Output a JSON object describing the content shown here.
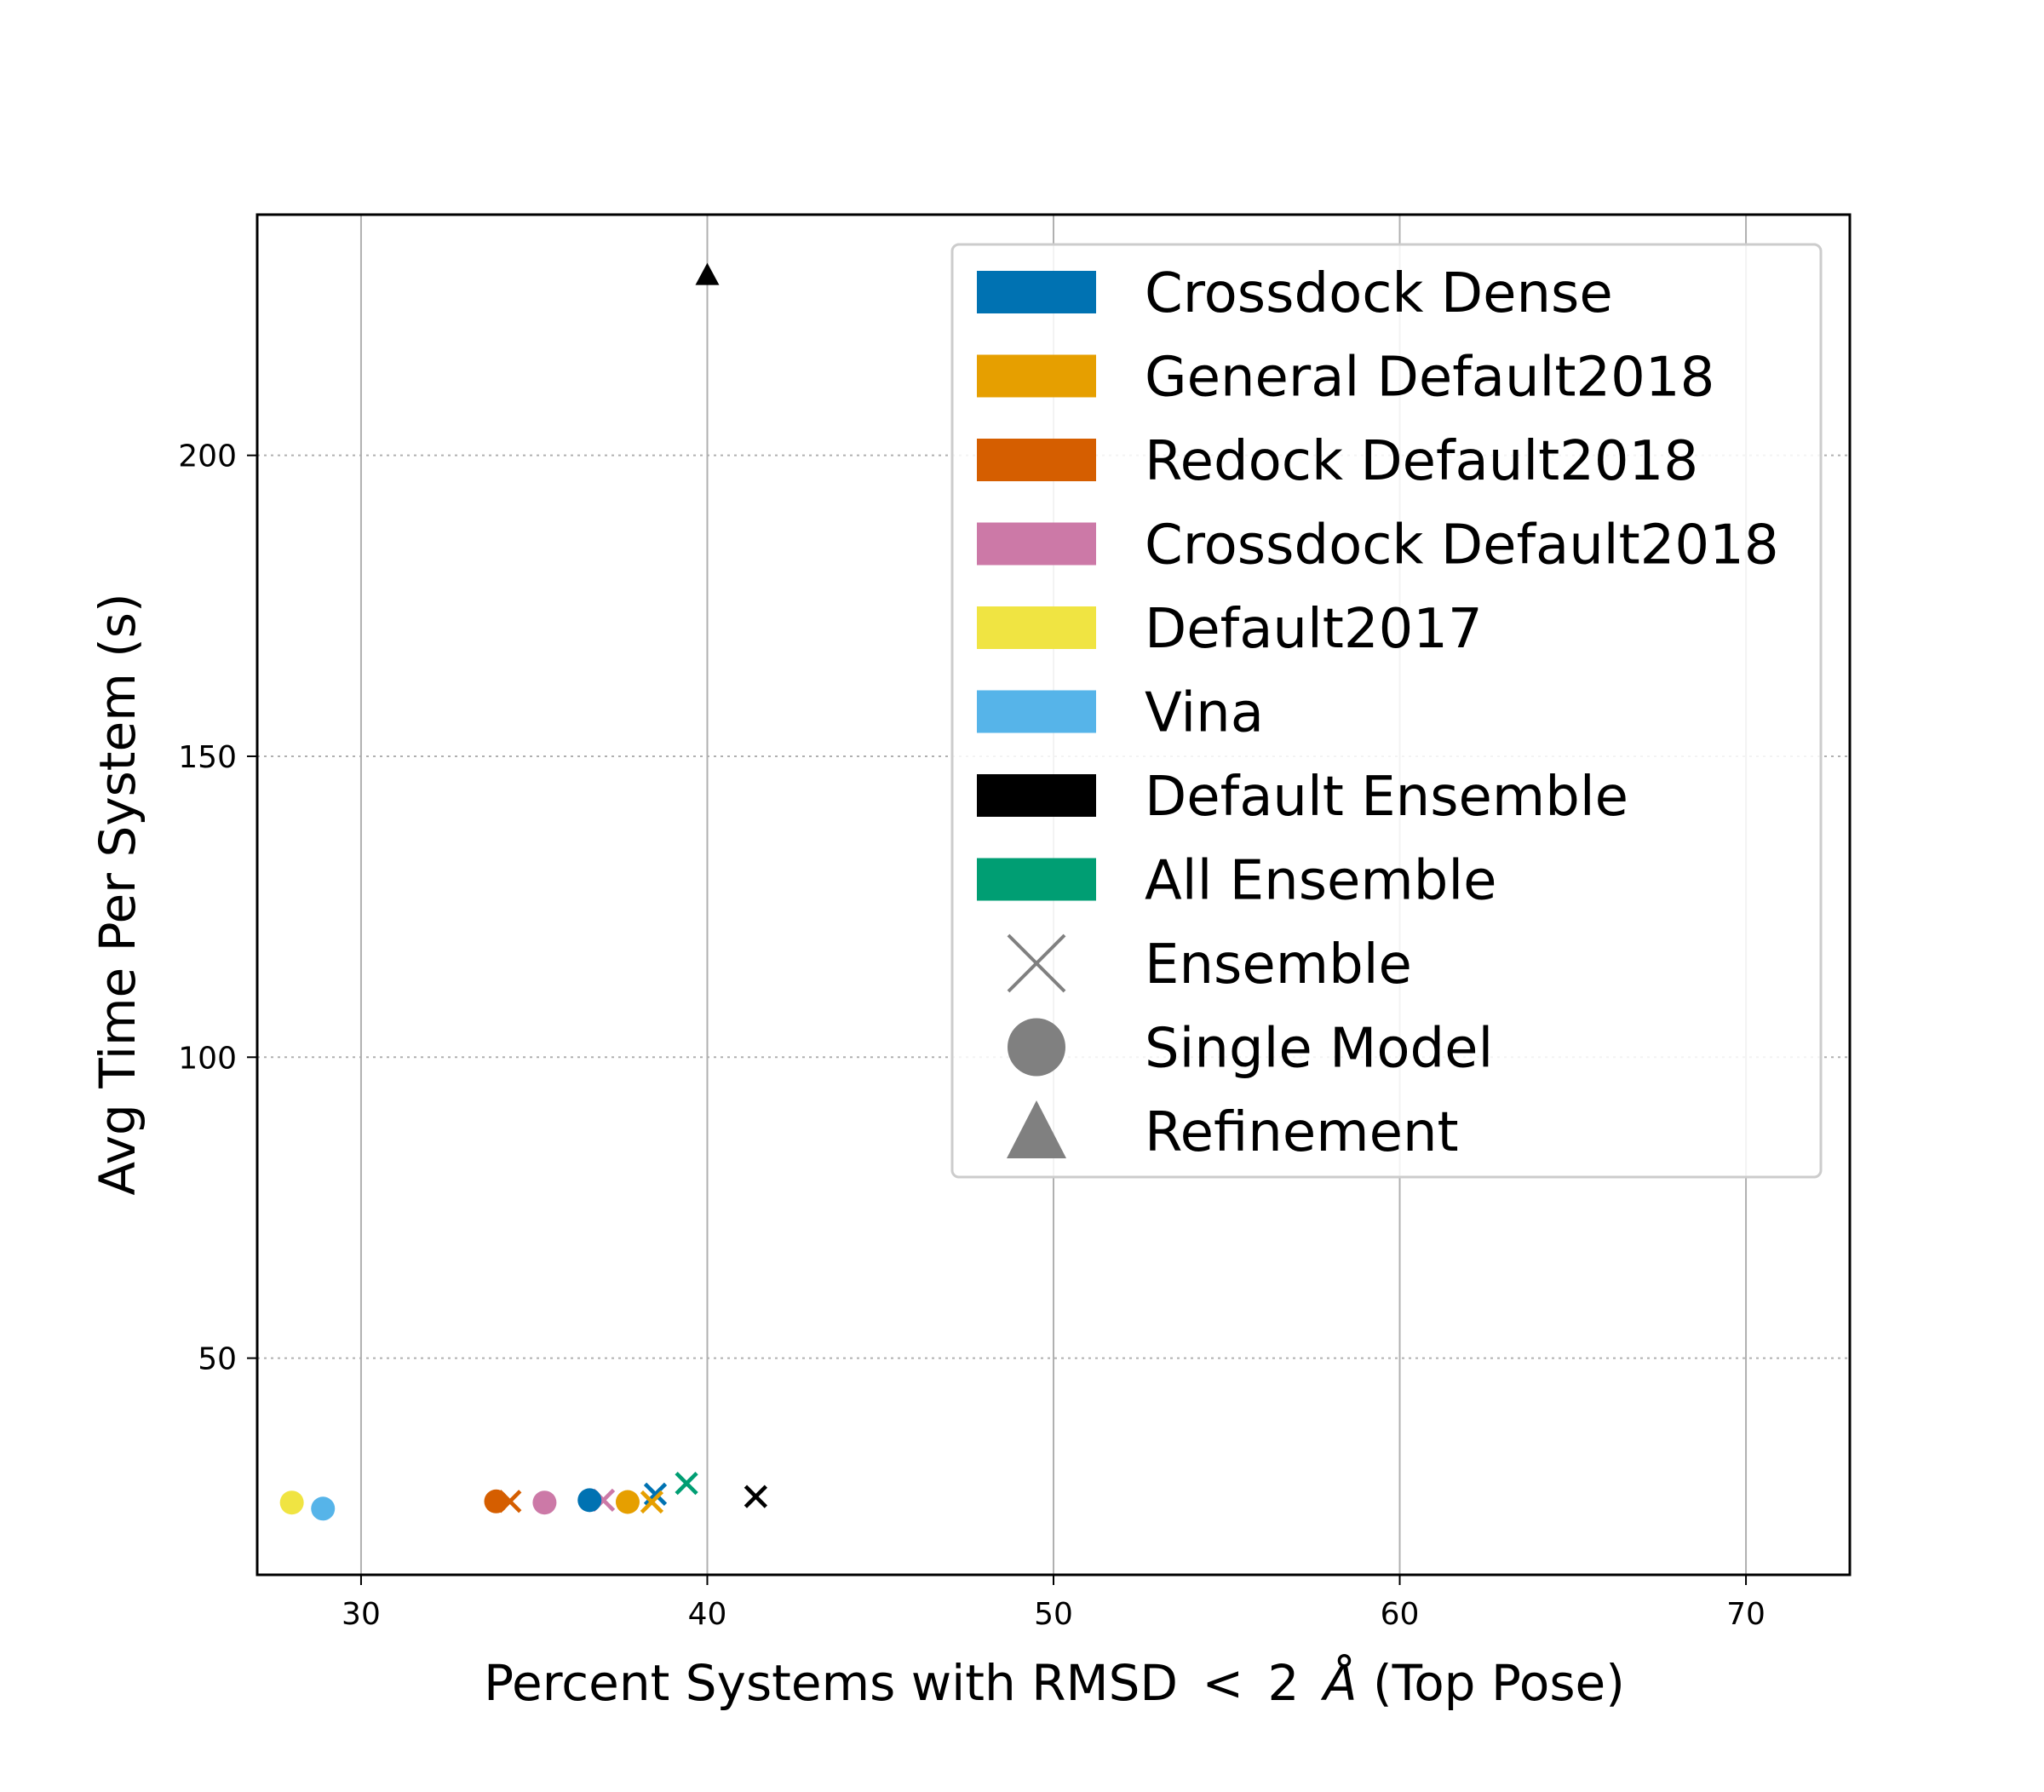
{
  "chart_data": {
    "type": "scatter",
    "title": "",
    "xlabel": "Percent Systems with RMSD < 2 Å (Top Pose)",
    "xlabel_parts": [
      "Percent Systems with RMSD",
      "<",
      "2",
      "Å",
      "(Top Pose)"
    ],
    "ylabel": "Avg Time Per System (s)",
    "xlim": [
      27,
      73
    ],
    "ylim": [
      14,
      240
    ],
    "xticks": [
      30,
      40,
      50,
      60,
      70
    ],
    "yticks": [
      50,
      100,
      150,
      200
    ],
    "grid": {
      "x": "solid",
      "y": "dotted"
    },
    "legend_position": "upper-right",
    "legend": {
      "colors": [
        {
          "label": "Crossdock Dense",
          "color": "#0072b2"
        },
        {
          "label": "General Default2018",
          "color": "#e69f00"
        },
        {
          "label": "Redock Default2018",
          "color": "#d55e00"
        },
        {
          "label": "Crossdock Default2018",
          "color": "#cc79a7"
        },
        {
          "label": "Default2017",
          "color": "#f0e442"
        },
        {
          "label": "Vina",
          "color": "#56b4e9"
        },
        {
          "label": "Default Ensemble",
          "color": "#000000"
        },
        {
          "label": "All Ensemble",
          "color": "#009e73"
        }
      ],
      "markers": [
        {
          "label": "Ensemble",
          "marker": "x",
          "color": "#808080"
        },
        {
          "label": "Single Model",
          "marker": "circle",
          "color": "#808080"
        },
        {
          "label": "Refinement",
          "marker": "triangle",
          "color": "#808080"
        }
      ]
    },
    "points": [
      {
        "series": "Default2017",
        "marker": "circle",
        "x": 28.0,
        "y": 26.0,
        "color": "#f0e442"
      },
      {
        "series": "Vina",
        "marker": "circle",
        "x": 28.9,
        "y": 25.0,
        "color": "#56b4e9"
      },
      {
        "series": "Redock Default2018",
        "marker": "circle",
        "x": 33.9,
        "y": 26.2,
        "color": "#d55e00"
      },
      {
        "series": "Redock Default2018",
        "marker": "x",
        "x": 34.3,
        "y": 26.2,
        "color": "#d55e00"
      },
      {
        "series": "Crossdock Default2018",
        "marker": "circle",
        "x": 35.3,
        "y": 26.0,
        "color": "#cc79a7"
      },
      {
        "series": "Crossdock Default2018",
        "marker": "x",
        "x": 37.0,
        "y": 26.4,
        "color": "#cc79a7"
      },
      {
        "series": "Crossdock Dense",
        "marker": "circle",
        "x": 36.6,
        "y": 26.4,
        "color": "#0072b2"
      },
      {
        "series": "General Default2018",
        "marker": "circle",
        "x": 37.7,
        "y": 26.1,
        "color": "#e69f00"
      },
      {
        "series": "Crossdock Dense",
        "marker": "x",
        "x": 38.5,
        "y": 27.4,
        "color": "#0072b2"
      },
      {
        "series": "General Default2018",
        "marker": "x",
        "x": 38.4,
        "y": 26.1,
        "color": "#e69f00"
      },
      {
        "series": "All Ensemble",
        "marker": "x",
        "x": 39.4,
        "y": 29.2,
        "color": "#009e73"
      },
      {
        "series": "Default Ensemble",
        "marker": "x",
        "x": 41.4,
        "y": 27.0,
        "color": "#000000"
      },
      {
        "series": "Default Ensemble",
        "marker": "triangle",
        "x": 40.0,
        "y": 230.0,
        "color": "#000000"
      }
    ]
  }
}
